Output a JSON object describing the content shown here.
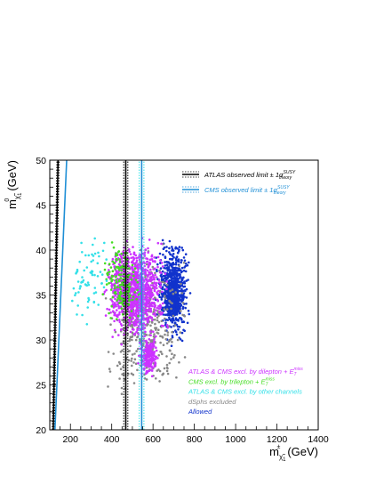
{
  "chart_data": {
    "type": "scatter",
    "title": "",
    "xlabel": "m",
    "xlabel_sub": "χ̃",
    "xlabel_subsub": "1",
    "xlabel_sup": "±",
    "xlabel_unit": "(GeV)",
    "ylabel": "m",
    "ylabel_sub": "χ̃",
    "ylabel_subsub": "1",
    "ylabel_sup": "0",
    "ylabel_unit": "(GeV)",
    "xlim": [
      100,
      1400
    ],
    "ylim": [
      20,
      50
    ],
    "xticks": [
      "200",
      "400",
      "600",
      "800",
      "1000",
      "1200",
      "1400"
    ],
    "xtick_values": [
      200,
      400,
      600,
      800,
      1000,
      1200,
      1400
    ],
    "yticks": [
      "20",
      "25",
      "30",
      "35",
      "40",
      "45",
      "50"
    ],
    "ytick_values": [
      20,
      25,
      30,
      35,
      40,
      45,
      50
    ],
    "grid": false,
    "legend_lines": [
      {
        "text": "ATLAS observed limit ± 1σ",
        "sup": "SUSY",
        "sub": "theory",
        "color": "#000000"
      },
      {
        "text": "CMS observed limit ± 1σ",
        "sup": "SUSY",
        "sub": "theory",
        "color": "#1f8fd6"
      }
    ],
    "categories": [
      {
        "text": "ATLAS & CMS excl. by dilepton + E",
        "sub": "T",
        "sup": "miss",
        "color": "#cc33ff"
      },
      {
        "text": "CMS excl. by trilepton + E",
        "sub": "T",
        "sup": "miss",
        "color": "#44dd22"
      },
      {
        "text": "ATLAS & CMS excl. by other channels",
        "color": "#33e0e8"
      },
      {
        "text": "dSphs excluded",
        "color": "#888888"
      },
      {
        "text": "Allowed",
        "color": "#1133cc"
      }
    ],
    "limit_curves": [
      {
        "name": "ATLAS observed",
        "color": "#000000",
        "style": "solid",
        "curve": [
          [
            117,
            20
          ],
          [
            140,
            50
          ]
        ]
      },
      {
        "name": "ATLAS -1σ",
        "color": "#000000",
        "style": "dotted",
        "curve": [
          [
            112,
            20
          ],
          [
            135,
            50
          ]
        ]
      },
      {
        "name": "ATLAS +1σ",
        "color": "#000000",
        "style": "dotted",
        "curve": [
          [
            122,
            20
          ],
          [
            145,
            50
          ]
        ]
      },
      {
        "name": "CMS observed",
        "color": "#1f8fd6",
        "style": "solid",
        "curve": [
          [
            125,
            20
          ],
          [
            182,
            50
          ]
        ]
      },
      {
        "name": "ATLAS observed (high mass)",
        "color": "#000000",
        "style": "solid",
        "curve": [
          [
            468,
            20
          ],
          [
            468,
            50
          ]
        ]
      },
      {
        "name": "ATLAS ±1σ (high mass)",
        "color": "#000000",
        "style": "dotted",
        "curve": [
          [
            458,
            20
          ],
          [
            458,
            50
          ]
        ]
      },
      {
        "name": "ATLAS ±1σ (high mass) b",
        "color": "#000000",
        "style": "dotted",
        "curve": [
          [
            478,
            20
          ],
          [
            478,
            50
          ]
        ]
      },
      {
        "name": "CMS observed (high mass)",
        "color": "#1f8fd6",
        "style": "solid",
        "curve": [
          [
            545,
            20
          ],
          [
            545,
            50
          ]
        ]
      },
      {
        "name": "CMS ±1σ (high mass)",
        "color": "#33e0e8",
        "style": "dotted",
        "curve": [
          [
            533,
            20
          ],
          [
            533,
            50
          ]
        ]
      },
      {
        "name": "CMS ±1σ (high mass) b",
        "color": "#33e0e8",
        "style": "dotted",
        "curve": [
          [
            556,
            20
          ],
          [
            556,
            50
          ]
        ]
      }
    ],
    "point_clouds": [
      {
        "category": "Allowed",
        "color": "#1133cc",
        "count": 650,
        "x": [
          600,
          790
        ],
        "y": [
          29,
          42
        ]
      },
      {
        "category": "Allowed core",
        "color": "#1133cc",
        "count": 250,
        "x": [
          660,
          740
        ],
        "y": [
          32,
          37
        ]
      },
      {
        "category": "dSphs excluded",
        "color": "#888888",
        "count": 420,
        "x": [
          330,
          790
        ],
        "y": [
          22,
          42
        ]
      },
      {
        "category": "ATLAS & CMS excl. by dilepton",
        "color": "#cc33ff",
        "count": 1100,
        "x": [
          340,
          690
        ],
        "y": [
          29,
          42
        ]
      },
      {
        "category": "ATLAS & CMS excl. by dilepton (low)",
        "color": "#cc33ff",
        "count": 220,
        "x": [
          520,
          640
        ],
        "y": [
          25.5,
          31
        ]
      },
      {
        "category": "CMS excl. by trilepton",
        "color": "#44dd22",
        "count": 160,
        "x": [
          340,
          560
        ],
        "y": [
          31,
          42
        ]
      },
      {
        "category": "ATLAS & CMS excl. by other channels",
        "color": "#33e0e8",
        "count": 70,
        "x": [
          170,
          420
        ],
        "y": [
          31,
          43
        ]
      }
    ]
  }
}
